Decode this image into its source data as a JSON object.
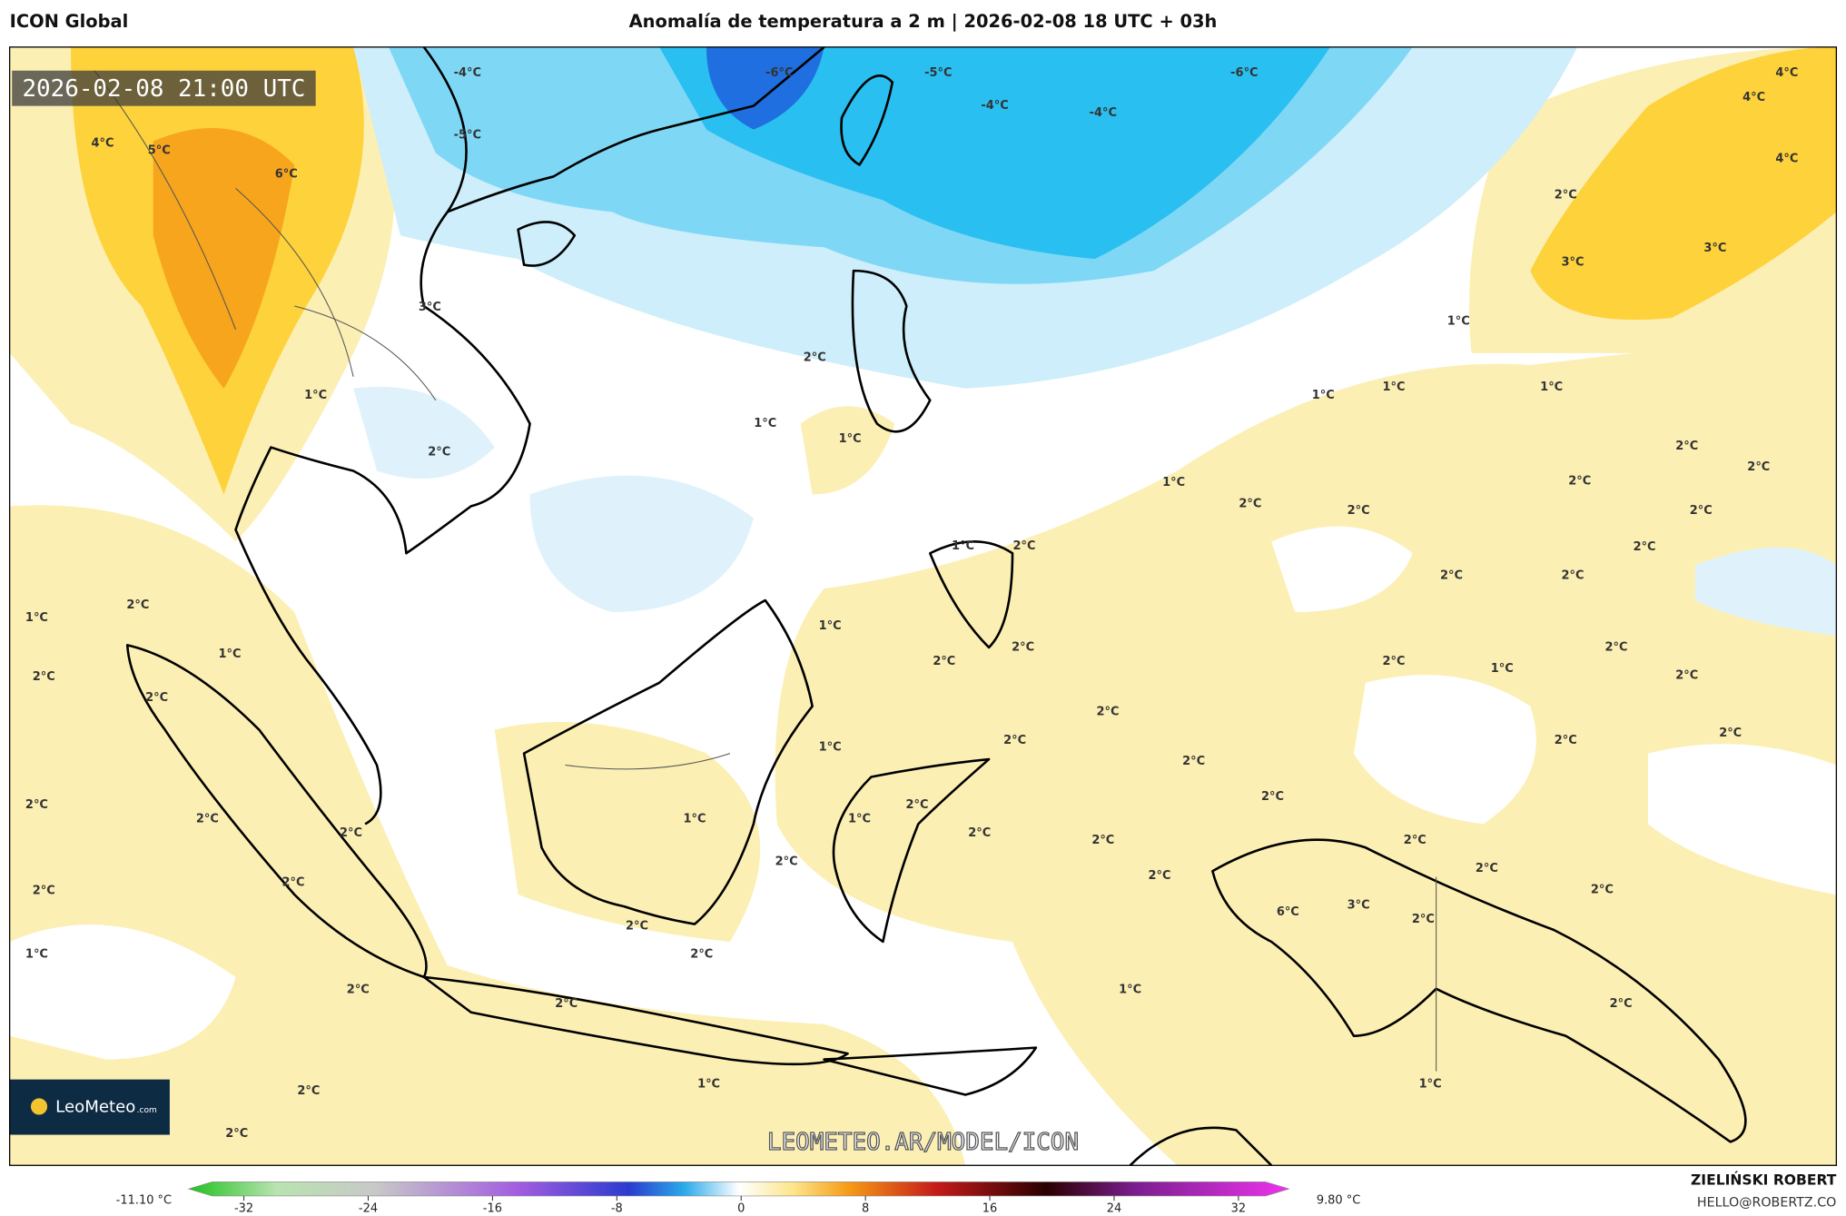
{
  "header": {
    "model": "ICON Global",
    "title": "Anomalía de temperatura a 2 m | 2026-02-08 18 UTC + 03h"
  },
  "map": {
    "valid_time": "2026-02-08 21:00 UTC",
    "watermark": "LEOMETEO.AR/MODEL/ICON",
    "logo": {
      "name": "LeoMeteo",
      "suffix": ".com"
    },
    "labels": [
      "-6°C",
      "-5°C",
      "-6°C",
      "-4°C",
      "-4°C",
      "-4°C",
      "4°C",
      "5°C",
      "-5°C",
      "6°C",
      "4°C",
      "4°C",
      "4°C",
      "2°C",
      "3°C",
      "3°C",
      "3°C",
      "1°C",
      "2°C",
      "1°C",
      "1°C",
      "1°C",
      "1°C",
      "1°C",
      "1°C",
      "2°C",
      "2°C",
      "2°C",
      "1°C",
      "2°C",
      "2°C",
      "2°C",
      "2°C",
      "1°C",
      "2°C",
      "2°C",
      "2°C",
      "2°C",
      "2°C",
      "1°C",
      "1°C",
      "1°C",
      "2°C",
      "2°C",
      "2°C",
      "2°C",
      "1°C",
      "2°C",
      "2°C",
      "2°C",
      "2°C",
      "2°C",
      "2°C",
      "2°C",
      "1°C",
      "2°C",
      "2°C",
      "2°C",
      "2°C",
      "1°C",
      "1°C",
      "2°C",
      "2°C",
      "2°C",
      "2°C",
      "2°C",
      "2°C",
      "2°C",
      "2°C",
      "2°C",
      "2°C",
      "2°C",
      "6°C",
      "3°C",
      "2°C",
      "2°C",
      "2°C",
      "1°C",
      "2°C",
      "1°C",
      "2°C",
      "2°C",
      "1°C",
      "1°C",
      "2°C",
      "2°C"
    ]
  },
  "colorbar": {
    "min_label": "-11.10 °C",
    "max_label": "9.80 °C",
    "ticks": [
      -32,
      -24,
      -16,
      -8,
      0,
      8,
      16,
      24,
      32
    ]
  },
  "footer": {
    "author": "ZIELIŃSKI ROBERT",
    "email": "HELLO@ROBERTZ.CO"
  }
}
